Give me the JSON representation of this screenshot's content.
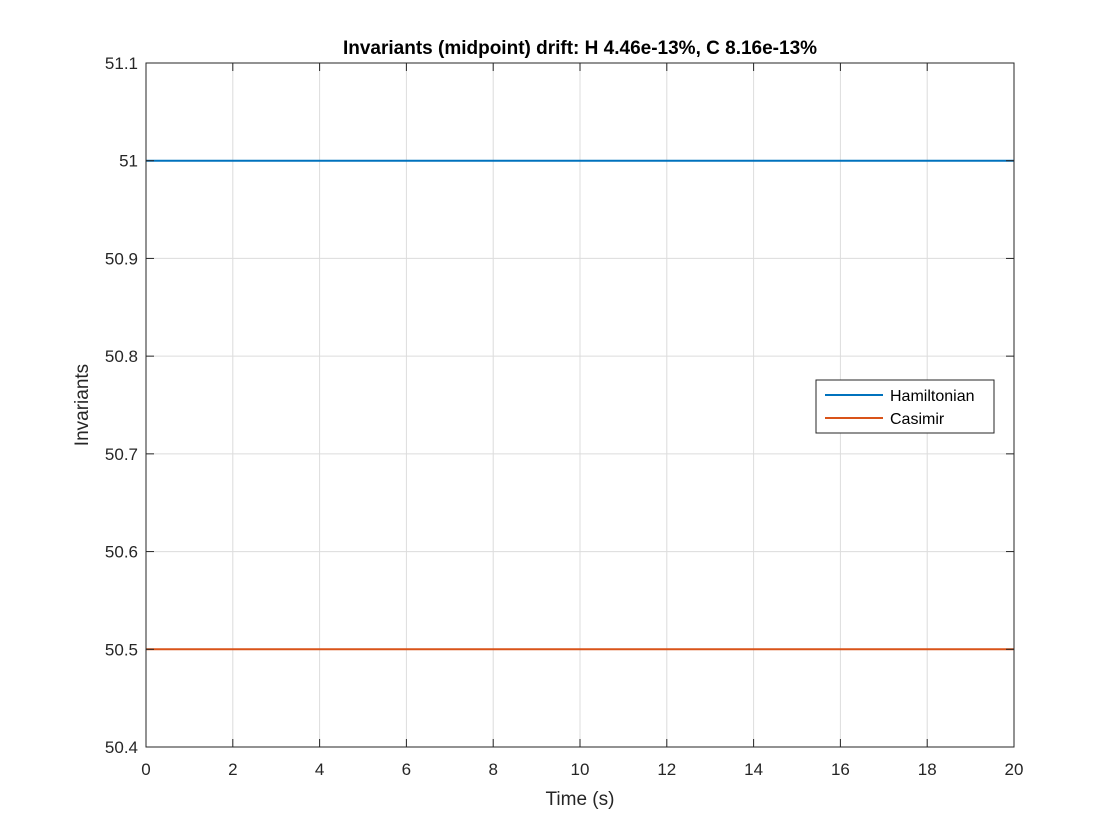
{
  "chart_data": {
    "type": "line",
    "title": "Invariants (midpoint)  drift: H 4.46e-13%, C 8.16e-13%",
    "xlabel": "Time (s)",
    "ylabel": "Invariants",
    "xlim": [
      0,
      20
    ],
    "ylim": [
      50.4,
      51.1
    ],
    "xticks": [
      0,
      2,
      4,
      6,
      8,
      10,
      12,
      14,
      16,
      18,
      20
    ],
    "xtick_labels": [
      "0",
      "2",
      "4",
      "6",
      "8",
      "10",
      "12",
      "14",
      "16",
      "18",
      "20"
    ],
    "yticks": [
      50.4,
      50.5,
      50.6,
      50.7,
      50.8,
      50.9,
      51.0,
      51.1
    ],
    "ytick_labels": [
      "50.4",
      "50.5",
      "50.6",
      "50.7",
      "50.8",
      "50.9",
      "51",
      "51.1"
    ],
    "grid": true,
    "legend_position": "right",
    "series": [
      {
        "name": "Hamiltonian",
        "color": "#0072BD",
        "x": [
          0,
          20
        ],
        "y": [
          51.0,
          51.0
        ]
      },
      {
        "name": "Casimir",
        "color": "#D95319",
        "x": [
          0,
          20
        ],
        "y": [
          50.5,
          50.5
        ]
      }
    ]
  }
}
